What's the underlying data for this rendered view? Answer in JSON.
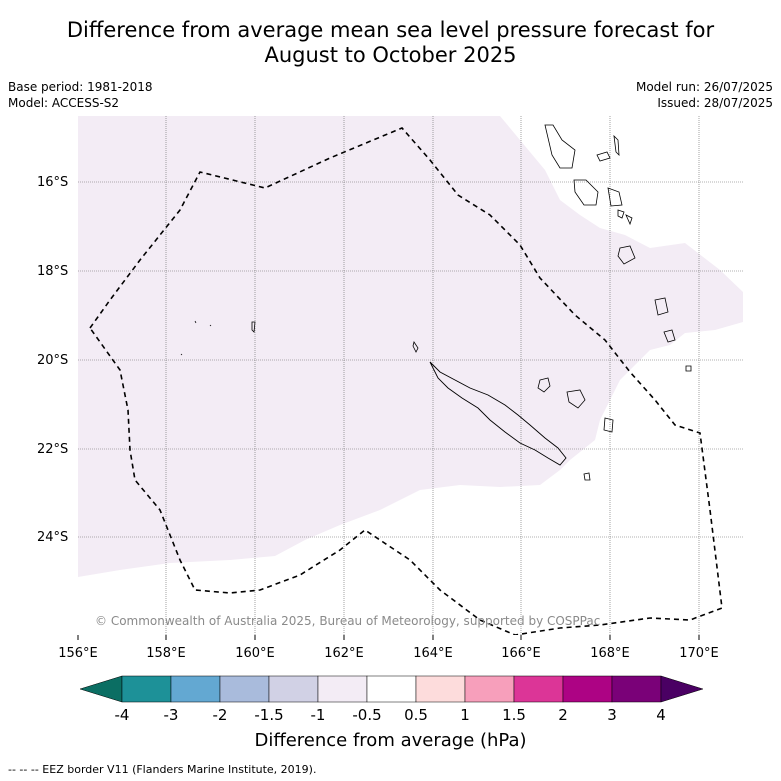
{
  "title_line1": "Difference from average mean sea level pressure forecast for",
  "title_line2": "August to October 2025",
  "meta_left": [
    "Base period: 1981-2018",
    "Model: ACCESS-S2"
  ],
  "meta_right": [
    "Model run: 26/07/2025",
    "Issued: 28/07/2025"
  ],
  "map": {
    "lat_ticks": [
      "16°S",
      "18°S",
      "20°S",
      "22°S",
      "24°S"
    ],
    "lon_ticks": [
      "156°E",
      "158°E",
      "160°E",
      "162°E",
      "164°E",
      "166°E",
      "168°E",
      "170°E"
    ],
    "copyright": "© Commonwealth of Australia 2025, Bureau of Meteorology, supported by COSPPac",
    "shaded_category": "-1 to -0.5",
    "shaded_color": "#f3ecf5",
    "region": "New Caledonia EEZ"
  },
  "colorbar": {
    "labels": [
      "-4",
      "-3",
      "-2",
      "-1.5",
      "-1",
      "-0.5",
      "0.5",
      "1",
      "1.5",
      "2",
      "3",
      "4"
    ],
    "colors": [
      "#0b6e63",
      "#1d9198",
      "#63a8d2",
      "#a9bbdc",
      "#d1d1e5",
      "#f3ecf5",
      "#ffffff",
      "#fddcdc",
      "#f79fbb",
      "#dc3597",
      "#ad0384",
      "#7a0178",
      "#4a0063"
    ],
    "title": "Difference from average (hPa)"
  },
  "footnote": "--  --  -- EEZ border V11 (Flanders Marine Institute, 2019)."
}
